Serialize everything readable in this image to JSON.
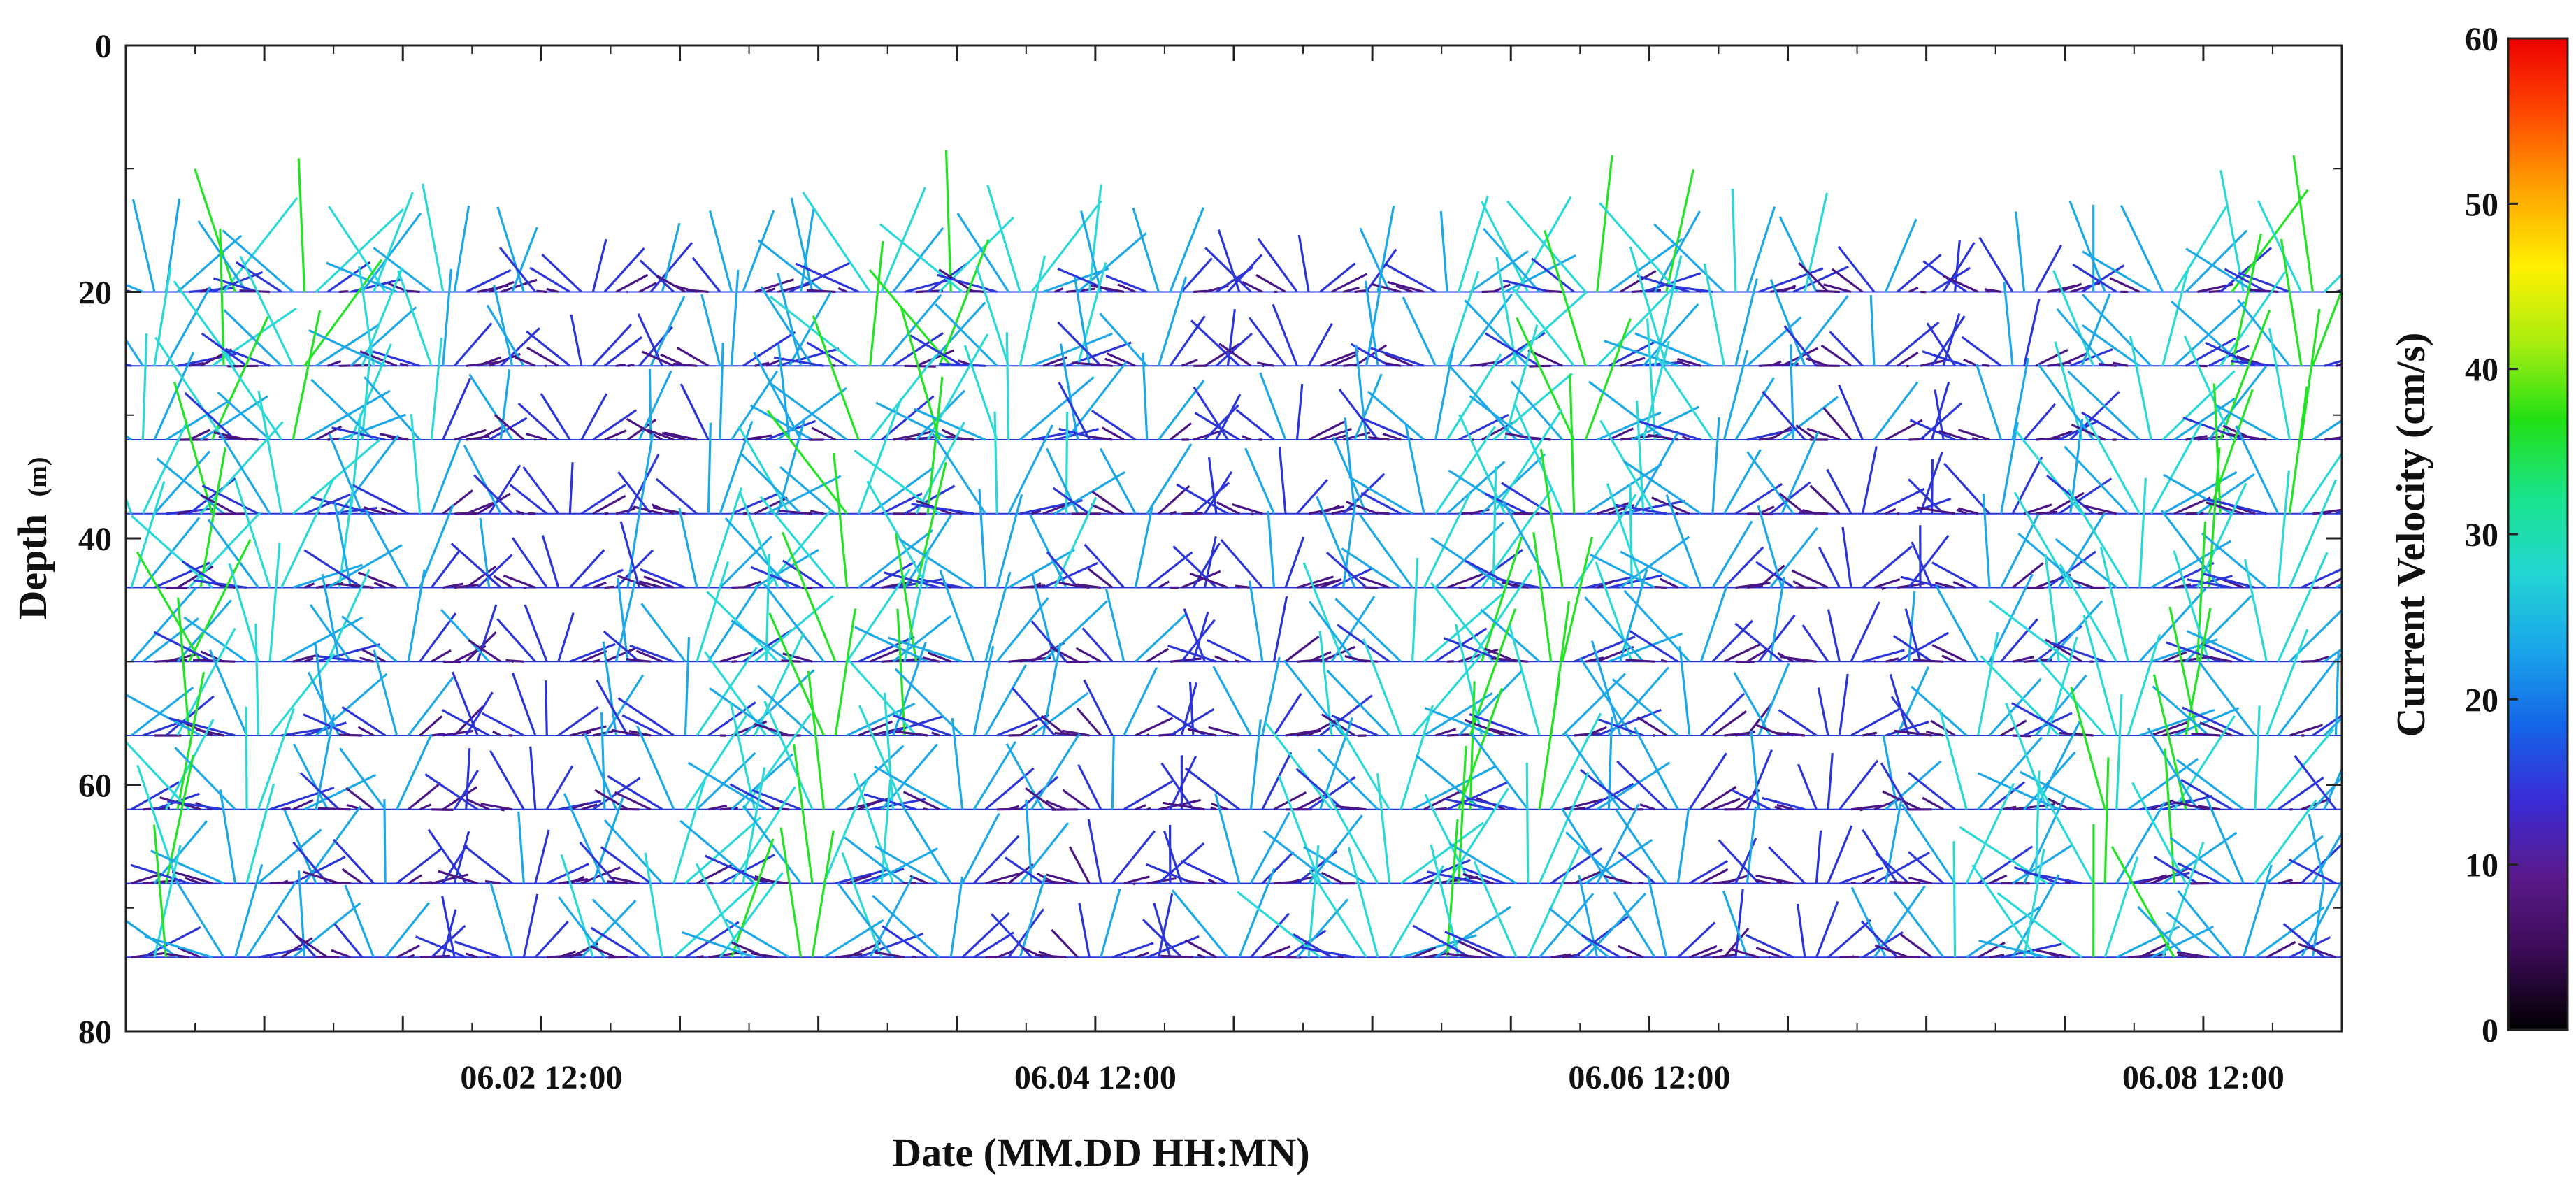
{
  "chart_data": {
    "type": "stick_plot",
    "title": "",
    "xlabel": "Date (MM.DD HH:MN)",
    "ylabel_main": "Depth",
    "ylabel_unit": "(m)",
    "y_ticks": [
      "0",
      "20",
      "40",
      "60",
      "80"
    ],
    "ylim": [
      0,
      80
    ],
    "y_inverted": true,
    "x_ticks": [
      "06.02 12:00",
      "06.04 12:00",
      "06.06 12:00",
      "06.08 12:00"
    ],
    "x_tick_days": [
      1.5,
      3.5,
      5.5,
      7.5
    ],
    "xlim_days": [
      0,
      8
    ],
    "depth_levels": [
      20,
      26,
      32,
      38,
      44,
      50,
      56,
      62,
      68,
      74
    ],
    "stick_scale_m_per_cms": 0.35,
    "tidal_period_hours": 12.42,
    "colorbar": {
      "label": "Current Velocity (cm/s)",
      "ticks": [
        "0",
        "10",
        "20",
        "30",
        "40",
        "50",
        "60"
      ],
      "range": [
        0,
        60
      ],
      "colors": [
        "#000000",
        "#3a0a55",
        "#5a1a8a",
        "#3a2bd6",
        "#1466e8",
        "#1aa6ea",
        "#22d6d2",
        "#19e38a",
        "#22e015",
        "#a8ee10",
        "#fff000",
        "#ffa500",
        "#ff4a00",
        "#ee0000"
      ]
    },
    "speed_colors": {
      "low": "#4a1585",
      "mid": "#2b35d8",
      "high": "#1ca8e8",
      "cyan": "#2bd8d8",
      "green": "#24e326"
    }
  }
}
